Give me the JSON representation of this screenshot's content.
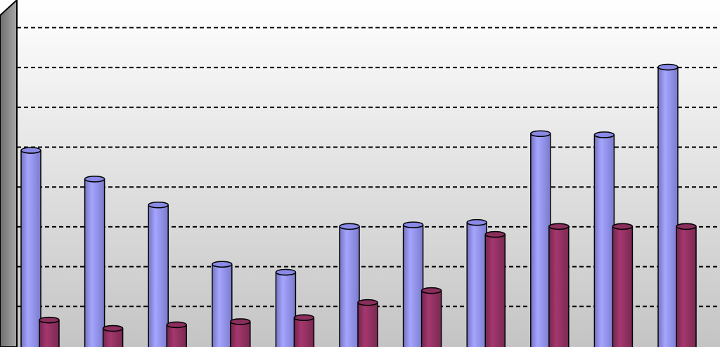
{
  "chart_data": {
    "type": "bar",
    "style": "3d-cylinder",
    "categories": [
      "",
      "",
      "",
      "",
      "",
      "",
      "",
      "",
      "",
      "",
      ""
    ],
    "ylim": [
      0,
      8
    ],
    "grid": true,
    "grid_style": "dashed",
    "legend": "none",
    "series": [
      {
        "color": "#9999ff",
        "values": [
          4.92,
          4.2,
          3.55,
          2.06,
          1.86,
          3.01,
          3.05,
          3.11,
          5.34,
          5.31,
          7.01
        ]
      },
      {
        "color": "#993366",
        "values": [
          0.66,
          0.45,
          0.54,
          0.62,
          0.72,
          1.1,
          1.4,
          2.81,
          3.01,
          3.01,
          3.01
        ]
      }
    ]
  },
  "colors": {
    "wall_top": "#ffffff",
    "wall_bottom": "#c8c8c8",
    "side_wall": "#8a8a8a",
    "gridline": "#000000"
  }
}
